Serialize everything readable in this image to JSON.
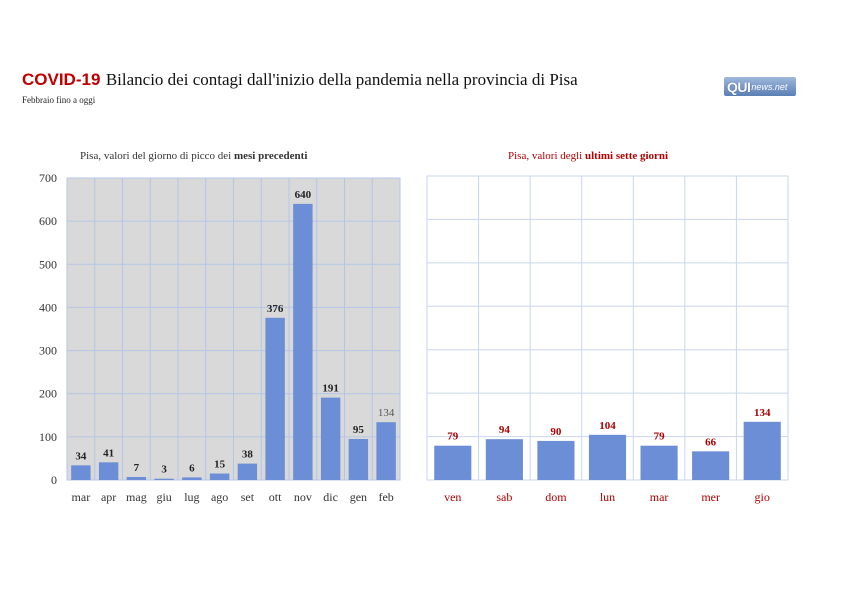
{
  "header": {
    "title_accent": "COVID-19",
    "title_rest": "Bilancio dei contagi dall'inizio della pandemia nella provincia di Pisa",
    "subtitle": "Febbraio fino a oggi",
    "logo_main": "QUI",
    "logo_sub": "news.net"
  },
  "chart_data": [
    {
      "type": "bar",
      "title_prefix": "Pisa, valori del giorno di picco dei ",
      "title_bold": "mesi precedenti",
      "categories": [
        "mar",
        "apr",
        "mag",
        "giu",
        "lug",
        "ago",
        "set",
        "ott",
        "nov",
        "dic",
        "gen",
        "feb"
      ],
      "values": [
        34,
        41,
        7,
        3,
        6,
        15,
        38,
        376,
        640,
        191,
        95,
        134
      ],
      "ylim": [
        0,
        700
      ],
      "yticks": [
        0,
        100,
        200,
        300,
        400,
        500,
        600,
        700
      ],
      "data_labels": [
        "34",
        "41",
        "7",
        "3",
        "6",
        "15",
        "38",
        "376",
        "640",
        "191",
        "95",
        "134"
      ],
      "grid": true,
      "colors": {
        "bar": "#6c8ed6",
        "background": "#d9d9d9",
        "grid": "#b4c6e7"
      }
    },
    {
      "type": "bar",
      "title_prefix": "Pisa, valori degli ",
      "title_bold": "ultimi sette giorni",
      "categories": [
        "ven",
        "sab",
        "dom",
        "lun",
        "mar",
        "mer",
        "gio"
      ],
      "values": [
        79,
        94,
        90,
        104,
        79,
        66,
        134
      ],
      "ylim": [
        0,
        700
      ],
      "data_labels": [
        "79",
        "94",
        "90",
        "104",
        "79",
        "66",
        "134"
      ],
      "grid": true,
      "colors": {
        "bar": "#6c8ed6",
        "background": "#ffffff",
        "grid": "#c9d6ee",
        "text": "#b00000"
      }
    }
  ]
}
